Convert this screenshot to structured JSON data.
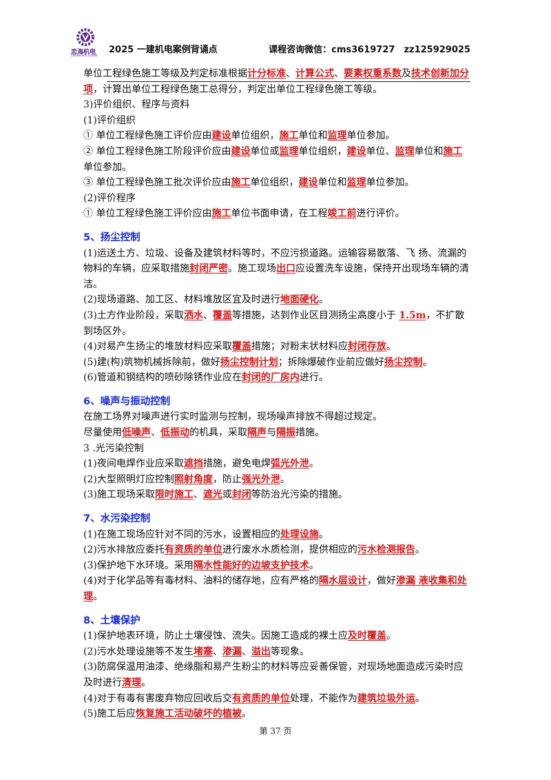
{
  "header": {
    "logo_text": "忠海机电",
    "logo_sub": "ZHONG HAI JI DIAN",
    "left_title": "2025 一建机电案例背诵点",
    "right_title": "课程咨询微信：cms3619727　zz125929025"
  },
  "paragraphs": [
    {
      "segments": [
        {
          "t": "单位工程绿色施工等级及判定标准根据"
        },
        {
          "t": "计分标准",
          "k": 1
        },
        {
          "t": "、"
        },
        {
          "t": "计算公式",
          "k": 1
        },
        {
          "t": "、"
        },
        {
          "t": "要素权重系数",
          "k": 1
        },
        {
          "t": "及"
        },
        {
          "t": "技术创新加分项",
          "k": 1
        },
        {
          "t": "，计算出单位工程绿色施工总得分，判定出单位工程绿色施工等级。"
        }
      ]
    },
    {
      "segments": [
        {
          "t": "3)评价组织、程序与资料"
        }
      ]
    },
    {
      "segments": [
        {
          "t": "(1)评价组织"
        }
      ]
    },
    {
      "segments": [
        {
          "t": "① 单位工程绿色施工评价应由"
        },
        {
          "t": "建设",
          "k": 1
        },
        {
          "t": "单位组织，"
        },
        {
          "t": "施工",
          "k": 1
        },
        {
          "t": "单位和"
        },
        {
          "t": "监理",
          "k": 1
        },
        {
          "t": "单位参加。"
        }
      ]
    },
    {
      "segments": [
        {
          "t": "② 单位工程绿色施工阶段评价应由"
        },
        {
          "t": "建设",
          "k": 1
        },
        {
          "t": "单位或"
        },
        {
          "t": "监理",
          "k": 1
        },
        {
          "t": "单位组织，"
        },
        {
          "t": "建设",
          "k": 1
        },
        {
          "t": "单位、"
        },
        {
          "t": "监理",
          "k": 1
        },
        {
          "t": "单位和"
        },
        {
          "t": "施工",
          "k": 1
        },
        {
          "t": "单位参加。"
        }
      ]
    },
    {
      "segments": [
        {
          "t": "③ 单位工程绿色施工批次评价应由"
        },
        {
          "t": "施工",
          "k": 1
        },
        {
          "t": "单位组织，"
        },
        {
          "t": "建设",
          "k": 1
        },
        {
          "t": "单位和"
        },
        {
          "t": "监理",
          "k": 1
        },
        {
          "t": "单位参加。"
        }
      ]
    },
    {
      "segments": [
        {
          "t": "(2)评价程序"
        }
      ]
    },
    {
      "segments": [
        {
          "t": "① 单位工程绿色施工评价应由"
        },
        {
          "t": "施工",
          "k": 1
        },
        {
          "t": "单位书面申请，在工程"
        },
        {
          "t": "竣工前",
          "k": 1
        },
        {
          "t": "进行评价。"
        }
      ]
    },
    {
      "gap": 1
    },
    {
      "section": 1,
      "segments": [
        {
          "t": "5、扬尘控制"
        }
      ]
    },
    {
      "segments": [
        {
          "t": "(1)运送土方、垃圾、设备及建筑材料等时，不应污损道路。运输容易散落、飞 扬、流漏的物料的车辆，应采取措施"
        },
        {
          "t": "封闭严密",
          "k": 1
        },
        {
          "t": "。施工现场"
        },
        {
          "t": "出口",
          "k": 1
        },
        {
          "t": "应设置洗车设施，保持开出现场车辆的清洁。"
        }
      ]
    },
    {
      "segments": [
        {
          "t": "(2)现场道路、加工区、材料堆放区宜及时进行"
        },
        {
          "t": "地面硬化",
          "k": 1
        },
        {
          "t": "。"
        }
      ]
    },
    {
      "segments": [
        {
          "t": "(3)土方作业阶段，采取"
        },
        {
          "t": "洒水",
          "k": 1
        },
        {
          "t": "、"
        },
        {
          "t": "覆盖",
          "k": 1
        },
        {
          "t": "等措施，达到作业区目测扬尘高度小于 "
        },
        {
          "t": "1.5m",
          "k": 1
        },
        {
          "t": "，不扩散到场区外。"
        }
      ]
    },
    {
      "segments": [
        {
          "t": "(4)对易产生扬尘的堆放材料应采取"
        },
        {
          "t": "覆盖",
          "k": 1
        },
        {
          "t": "措施；对粉末状材料应"
        },
        {
          "t": "封闭存放",
          "k": 1
        },
        {
          "t": "。"
        }
      ]
    },
    {
      "segments": [
        {
          "t": "(5)建(构)筑物机械拆除前，做好"
        },
        {
          "t": "扬尘控制计划",
          "k": 1
        },
        {
          "t": "；拆除爆破作业前应做好"
        },
        {
          "t": "扬尘控制",
          "k": 1
        },
        {
          "t": "。"
        }
      ]
    },
    {
      "segments": [
        {
          "t": "(6)管道和钢结构的喷砂除锈作业应在"
        },
        {
          "t": "封闭的厂房内",
          "k": 1
        },
        {
          "t": "进行。"
        }
      ]
    },
    {
      "gap": 1
    },
    {
      "section": 1,
      "segments": [
        {
          "t": "6、噪声与振动控制"
        }
      ]
    },
    {
      "segments": [
        {
          "t": "在施工场界对噪声进行实时监测与控制，现场噪声排放不得超过规定。"
        }
      ]
    },
    {
      "segments": [
        {
          "t": "尽量使用"
        },
        {
          "t": "低噪声",
          "k": 1
        },
        {
          "t": "、"
        },
        {
          "t": "低振动",
          "k": 1
        },
        {
          "t": "的机具，采取"
        },
        {
          "t": "隔声",
          "k": 1
        },
        {
          "t": "与"
        },
        {
          "t": "隔振",
          "k": 1
        },
        {
          "t": "措施。"
        }
      ]
    },
    {
      "segments": [
        {
          "t": "3 .光污染控制"
        }
      ]
    },
    {
      "segments": [
        {
          "t": "(1)夜间电焊作业应采取"
        },
        {
          "t": "遮挡",
          "k": 1
        },
        {
          "t": "措施，避免电焊"
        },
        {
          "t": "弧光外泄",
          "k": 1
        },
        {
          "t": "。"
        }
      ]
    },
    {
      "segments": [
        {
          "t": "(2)大型照明灯应控制"
        },
        {
          "t": "照射角度",
          "k": 1
        },
        {
          "t": "，防止"
        },
        {
          "t": "强光外泄",
          "k": 1
        },
        {
          "t": "。"
        }
      ]
    },
    {
      "segments": [
        {
          "t": "(3)施工现场采取"
        },
        {
          "t": "限时施工",
          "k": 1
        },
        {
          "t": "、"
        },
        {
          "t": "遮光",
          "k": 1
        },
        {
          "t": "或"
        },
        {
          "t": "封闭",
          "k": 1
        },
        {
          "t": "等防治光污染的措施。"
        }
      ]
    },
    {
      "gap": 1
    },
    {
      "section": 1,
      "segments": [
        {
          "t": "7、水污染控制"
        }
      ]
    },
    {
      "segments": [
        {
          "t": "(1)在施工现场应针对不同的污水，设置相应的"
        },
        {
          "t": "处理设施",
          "k": 1
        },
        {
          "t": "。"
        }
      ]
    },
    {
      "segments": [
        {
          "t": "(2)污水排放应委托"
        },
        {
          "t": "有资质的单位",
          "k": 1
        },
        {
          "t": "进行废水水质检测，提供相应的"
        },
        {
          "t": "污水检测报告",
          "k": 1
        },
        {
          "t": "。"
        }
      ]
    },
    {
      "segments": [
        {
          "t": "(3)保护地下水环境。采用"
        },
        {
          "t": "隔水性能好的边坡支护技术",
          "k": 1
        },
        {
          "t": "。"
        }
      ]
    },
    {
      "segments": [
        {
          "t": "(4)对于化学品等有毒材料、油料的储存地，应有严格的"
        },
        {
          "t": "隔水层设计",
          "k": 1
        },
        {
          "t": "，做好"
        },
        {
          "t": "渗漏 液收集和处理",
          "k": 1
        },
        {
          "t": "。"
        }
      ]
    },
    {
      "gap": 1
    },
    {
      "section": 1,
      "segments": [
        {
          "t": "8、土壤保护"
        }
      ]
    },
    {
      "segments": [
        {
          "t": "(1)保护地表环境，防止土壤侵蚀、流失。因施工造成的裸土应"
        },
        {
          "t": "及时覆盖",
          "k": 1
        },
        {
          "t": "。"
        }
      ]
    },
    {
      "segments": [
        {
          "t": "(2)污水处理设施等不发生"
        },
        {
          "t": "堵塞",
          "k": 1
        },
        {
          "t": "、"
        },
        {
          "t": "渗漏",
          "k": 1
        },
        {
          "t": "、"
        },
        {
          "t": "溢出",
          "k": 1
        },
        {
          "t": "等现象。"
        }
      ]
    },
    {
      "segments": [
        {
          "t": "(3)防腐保温用油漆、绝缘脂和易产生粉尘的材料等应妥善保管，对现场地面造成污染时应及时进行"
        },
        {
          "t": "清理",
          "k": 1
        },
        {
          "t": "。"
        }
      ]
    },
    {
      "segments": [
        {
          "t": "(4)对于有毒有害废弃物应回收后交"
        },
        {
          "t": "有资质的单位",
          "k": 1
        },
        {
          "t": "处理，不能作为"
        },
        {
          "t": "建筑垃圾外运",
          "k": 1
        },
        {
          "t": "。"
        }
      ]
    },
    {
      "segments": [
        {
          "t": "(5)施工后应"
        },
        {
          "t": "恢复施工活动破坏的植被",
          "k": 1
        },
        {
          "t": "。"
        }
      ]
    }
  ],
  "footer": {
    "page": "第 37 页"
  },
  "colors": {
    "keyword": "#d21d1d",
    "section": "#1b2fd6",
    "logo": "#5b2d8a"
  }
}
